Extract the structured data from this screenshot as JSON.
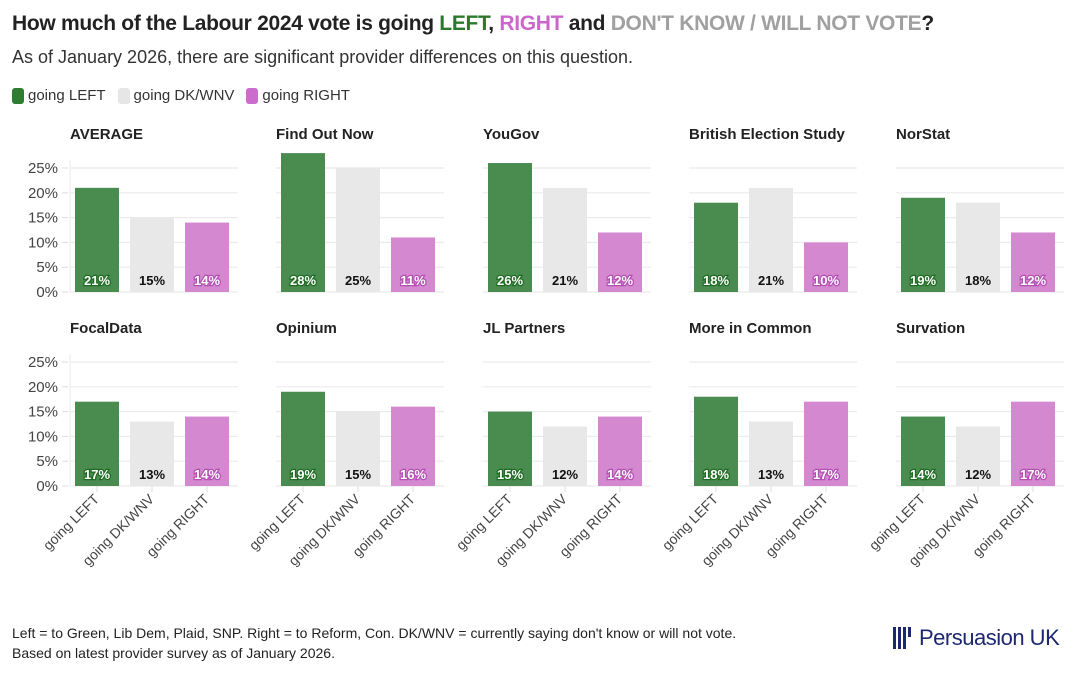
{
  "title": {
    "prefix": "How much of the Labour 2024 vote is going ",
    "left": "LEFT",
    "sep1": ", ",
    "right": "RIGHT",
    "sep2": " and ",
    "dk": "DON'T KNOW / WILL NOT VOTE",
    "suffix": "?"
  },
  "subtitle": "As of January 2026, there are significant provider differences on this question.",
  "legend": [
    {
      "label": "going LEFT",
      "color": "#2e7d32"
    },
    {
      "label": "going DK/WNV",
      "color": "#e6e6e6"
    },
    {
      "label": "going RIGHT",
      "color": "#cc6ccc"
    }
  ],
  "footer": {
    "line1": "Left = to Green, Lib Dem, Plaid, SNP. Right = to Reform, Con. DK/WNV = currently saying don't know or will not vote.",
    "line2": "Based on latest provider survey as of January 2026."
  },
  "logo": {
    "text": "Persuasion UK",
    "color": "#1d2873"
  },
  "colors": {
    "left": "#4a8c4f",
    "dk": "#e8e8e8",
    "right": "#d488d0",
    "left_label_outline": "#1f6b24",
    "right_label_outline": "#b44fb4"
  },
  "chart_data": {
    "type": "bar",
    "layout": "small-multiples",
    "categories": [
      "going LEFT",
      "going DK/WNV",
      "going RIGHT"
    ],
    "yticks": [
      "0%",
      "5%",
      "10%",
      "15%",
      "20%",
      "25%"
    ],
    "ylim": [
      0,
      28
    ],
    "grid": true,
    "legend_position": "top-left",
    "panels": [
      {
        "name": "AVERAGE",
        "values": [
          21,
          15,
          14
        ],
        "labels": [
          "21%",
          "15%",
          "14%"
        ]
      },
      {
        "name": "Find Out Now",
        "values": [
          28,
          25,
          11
        ],
        "labels": [
          "28%",
          "25%",
          "11%"
        ]
      },
      {
        "name": "YouGov",
        "values": [
          26,
          21,
          12
        ],
        "labels": [
          "26%",
          "21%",
          "12%"
        ]
      },
      {
        "name": "British Election Study",
        "values": [
          18,
          21,
          10
        ],
        "labels": [
          "18%",
          "21%",
          "10%"
        ]
      },
      {
        "name": "NorStat",
        "values": [
          19,
          18,
          12
        ],
        "labels": [
          "19%",
          "18%",
          "12%"
        ]
      },
      {
        "name": "FocalData",
        "values": [
          17,
          13,
          14
        ],
        "labels": [
          "17%",
          "13%",
          "14%"
        ]
      },
      {
        "name": "Opinium",
        "values": [
          19,
          15,
          16
        ],
        "labels": [
          "19%",
          "15%",
          "16%"
        ]
      },
      {
        "name": "JL Partners",
        "values": [
          15,
          12,
          14
        ],
        "labels": [
          "15%",
          "12%",
          "14%"
        ]
      },
      {
        "name": "More in Common",
        "values": [
          18,
          13,
          17
        ],
        "labels": [
          "18%",
          "13%",
          "17%"
        ]
      },
      {
        "name": "Survation",
        "values": [
          14,
          12,
          17
        ],
        "labels": [
          "14%",
          "12%",
          "17%"
        ]
      }
    ]
  }
}
